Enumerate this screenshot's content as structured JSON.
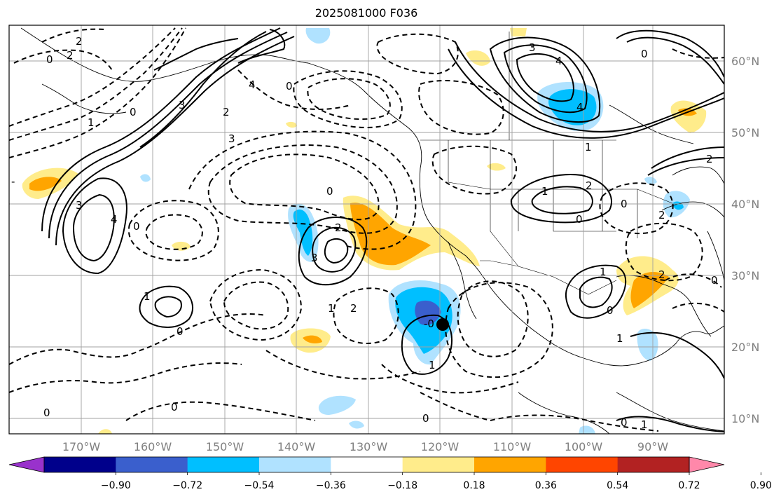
{
  "title": "2025081000 F036",
  "lon_labels": [
    "170°W",
    "160°W",
    "150°W",
    "140°W",
    "130°W",
    "120°W",
    "110°W",
    "100°W",
    "90°W"
  ],
  "lat_labels": [
    "60°N",
    "50°N",
    "40°N",
    "30°N",
    "20°N",
    "10°N"
  ],
  "colorbar": {
    "colors": [
      "#9932cc",
      "#00008b",
      "#3a5fcd",
      "#00bfff",
      "#b0e2ff",
      "#ffffff",
      "#ffec8b",
      "#ffa500",
      "#ff4500",
      "#b22222",
      "#ff88aa"
    ],
    "tick_labels": [
      "−0.90",
      "−0.72",
      "−0.54",
      "−0.36",
      "−0.18",
      "0.18",
      "0.36",
      "0.54",
      "0.72",
      "0.90"
    ]
  },
  "contour_labels": [
    {
      "text": "0"
    },
    {
      "text": "2"
    },
    {
      "text": "2"
    },
    {
      "text": "1"
    },
    {
      "text": "0"
    },
    {
      "text": "-"
    },
    {
      "text": "3"
    },
    {
      "text": "2"
    },
    {
      "text": "4"
    },
    {
      "text": "0"
    },
    {
      "text": "3"
    },
    {
      "text": "3"
    },
    {
      "text": "4"
    },
    {
      "text": "0"
    },
    {
      "text": "2"
    },
    {
      "text": "3"
    },
    {
      "text": "0"
    },
    {
      "text": "1"
    },
    {
      "text": "0"
    },
    {
      "text": "1"
    },
    {
      "text": "2"
    },
    {
      "text": "0"
    },
    {
      "text": "0"
    },
    {
      "text": "-0"
    },
    {
      "text": "1"
    },
    {
      "text": "3"
    },
    {
      "text": "4"
    },
    {
      "text": "4"
    },
    {
      "text": "0"
    },
    {
      "text": "1"
    },
    {
      "text": "1"
    },
    {
      "text": "2"
    },
    {
      "text": "0"
    },
    {
      "text": "2"
    },
    {
      "text": "0"
    },
    {
      "text": "2"
    },
    {
      "text": "1"
    },
    {
      "text": "0"
    },
    {
      "text": "1"
    },
    {
      "text": "0"
    },
    {
      "text": "0"
    },
    {
      "text": "0"
    },
    {
      "text": "1"
    },
    {
      "text": "2"
    }
  ],
  "colors": {
    "frame": "#000000",
    "grid": "#a0a0a0",
    "tick_text": "#808080",
    "marker": "#000000"
  }
}
